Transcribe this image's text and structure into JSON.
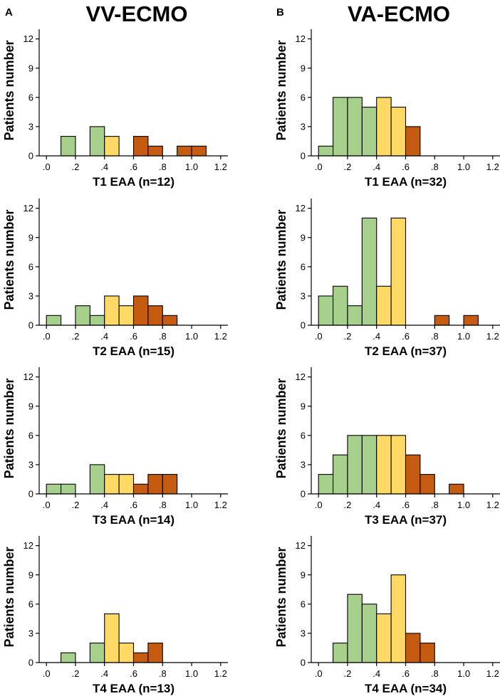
{
  "figure": {
    "columns": [
      {
        "letter": "A",
        "title": "VV-ECMO"
      },
      {
        "letter": "B",
        "title": "VA-ECMO"
      }
    ],
    "colors": {
      "green": "#a8d08d",
      "yellow": "#ffd966",
      "orange": "#c55a11",
      "axis": "#000000"
    },
    "ylabel": "Patients number",
    "xtick_labels": [
      ".0",
      ".2",
      ".4",
      ".6",
      ".8",
      "1.0",
      "1.2"
    ],
    "ytick_labels": [
      "0",
      "3",
      "6",
      "9",
      "12"
    ]
  },
  "chart_data": [
    {
      "type": "bar",
      "column": "VV-ECMO",
      "title": "VV-ECMO",
      "xlabel": "T1 EAA (n=12)",
      "ylabel": "Patients number",
      "xlim": [
        -0.05,
        1.25
      ],
      "ylim": [
        0,
        13
      ],
      "yticks": [
        0,
        3,
        6,
        9,
        12
      ],
      "bin_width": 0.1,
      "bars": [
        {
          "x0": 0.1,
          "value": 2,
          "color": "green"
        },
        {
          "x0": 0.3,
          "value": 3,
          "color": "green"
        },
        {
          "x0": 0.4,
          "value": 2,
          "color": "yellow"
        },
        {
          "x0": 0.6,
          "value": 2,
          "color": "orange"
        },
        {
          "x0": 0.7,
          "value": 1,
          "color": "orange"
        },
        {
          "x0": 0.9,
          "value": 1,
          "color": "orange"
        },
        {
          "x0": 1.0,
          "value": 1,
          "color": "orange"
        }
      ]
    },
    {
      "type": "bar",
      "column": "VV-ECMO",
      "xlabel": "T2 EAA (n=15)",
      "ylabel": "Patients number",
      "xlim": [
        -0.05,
        1.25
      ],
      "ylim": [
        0,
        13
      ],
      "yticks": [
        0,
        3,
        6,
        9,
        12
      ],
      "bin_width": 0.1,
      "bars": [
        {
          "x0": 0.0,
          "value": 1,
          "color": "green"
        },
        {
          "x0": 0.2,
          "value": 2,
          "color": "green"
        },
        {
          "x0": 0.3,
          "value": 1,
          "color": "green"
        },
        {
          "x0": 0.4,
          "value": 3,
          "color": "yellow"
        },
        {
          "x0": 0.5,
          "value": 2,
          "color": "yellow"
        },
        {
          "x0": 0.6,
          "value": 3,
          "color": "orange"
        },
        {
          "x0": 0.7,
          "value": 2,
          "color": "orange"
        },
        {
          "x0": 0.8,
          "value": 1,
          "color": "orange"
        }
      ]
    },
    {
      "type": "bar",
      "column": "VV-ECMO",
      "xlabel": "T3 EAA (n=14)",
      "ylabel": "Patients number",
      "xlim": [
        -0.05,
        1.25
      ],
      "ylim": [
        0,
        13
      ],
      "yticks": [
        0,
        3,
        6,
        9,
        12
      ],
      "bin_width": 0.1,
      "bars": [
        {
          "x0": 0.0,
          "value": 1,
          "color": "green"
        },
        {
          "x0": 0.1,
          "value": 1,
          "color": "green"
        },
        {
          "x0": 0.3,
          "value": 3,
          "color": "green"
        },
        {
          "x0": 0.4,
          "value": 2,
          "color": "yellow"
        },
        {
          "x0": 0.5,
          "value": 2,
          "color": "yellow"
        },
        {
          "x0": 0.6,
          "value": 1,
          "color": "orange"
        },
        {
          "x0": 0.7,
          "value": 2,
          "color": "orange"
        },
        {
          "x0": 0.8,
          "value": 2,
          "color": "orange"
        }
      ]
    },
    {
      "type": "bar",
      "column": "VV-ECMO",
      "xlabel": "T4 EAA (n=13)",
      "ylabel": "Patients number",
      "xlim": [
        -0.05,
        1.25
      ],
      "ylim": [
        0,
        13
      ],
      "yticks": [
        0,
        3,
        6,
        9,
        12
      ],
      "bin_width": 0.1,
      "bars": [
        {
          "x0": 0.1,
          "value": 1,
          "color": "green"
        },
        {
          "x0": 0.3,
          "value": 2,
          "color": "green"
        },
        {
          "x0": 0.4,
          "value": 5,
          "color": "yellow"
        },
        {
          "x0": 0.5,
          "value": 2,
          "color": "yellow"
        },
        {
          "x0": 0.6,
          "value": 1,
          "color": "orange"
        },
        {
          "x0": 0.7,
          "value": 2,
          "color": "orange"
        }
      ]
    },
    {
      "type": "bar",
      "column": "VA-ECMO",
      "title": "VA-ECMO",
      "xlabel": "T1 EAA (n=32)",
      "ylabel": "Patients number",
      "xlim": [
        -0.05,
        1.25
      ],
      "ylim": [
        0,
        13
      ],
      "yticks": [
        0,
        3,
        6,
        9,
        12
      ],
      "bin_width": 0.1,
      "bars": [
        {
          "x0": 0.0,
          "value": 1,
          "color": "green"
        },
        {
          "x0": 0.1,
          "value": 6,
          "color": "green"
        },
        {
          "x0": 0.2,
          "value": 6,
          "color": "green"
        },
        {
          "x0": 0.3,
          "value": 5,
          "color": "green"
        },
        {
          "x0": 0.4,
          "value": 6,
          "color": "yellow"
        },
        {
          "x0": 0.5,
          "value": 5,
          "color": "yellow"
        },
        {
          "x0": 0.6,
          "value": 3,
          "color": "orange"
        }
      ]
    },
    {
      "type": "bar",
      "column": "VA-ECMO",
      "xlabel": "T2 EAA (n=37)",
      "ylabel": "Patients number",
      "xlim": [
        -0.05,
        1.25
      ],
      "ylim": [
        0,
        13
      ],
      "yticks": [
        0,
        3,
        6,
        9,
        12
      ],
      "bin_width": 0.1,
      "bars": [
        {
          "x0": 0.0,
          "value": 3,
          "color": "green"
        },
        {
          "x0": 0.1,
          "value": 4,
          "color": "green"
        },
        {
          "x0": 0.2,
          "value": 2,
          "color": "green"
        },
        {
          "x0": 0.3,
          "value": 11,
          "color": "green"
        },
        {
          "x0": 0.4,
          "value": 4,
          "color": "yellow"
        },
        {
          "x0": 0.5,
          "value": 11,
          "color": "yellow"
        },
        {
          "x0": 0.8,
          "value": 1,
          "color": "orange"
        },
        {
          "x0": 1.0,
          "value": 1,
          "color": "orange"
        }
      ]
    },
    {
      "type": "bar",
      "column": "VA-ECMO",
      "xlabel": "T3 EAA (n=37)",
      "ylabel": "Patients number",
      "xlim": [
        -0.05,
        1.25
      ],
      "ylim": [
        0,
        13
      ],
      "yticks": [
        0,
        3,
        6,
        9,
        12
      ],
      "bin_width": 0.1,
      "bars": [
        {
          "x0": 0.0,
          "value": 2,
          "color": "green"
        },
        {
          "x0": 0.1,
          "value": 4,
          "color": "green"
        },
        {
          "x0": 0.2,
          "value": 6,
          "color": "green"
        },
        {
          "x0": 0.3,
          "value": 6,
          "color": "green"
        },
        {
          "x0": 0.4,
          "value": 6,
          "color": "yellow"
        },
        {
          "x0": 0.5,
          "value": 6,
          "color": "yellow"
        },
        {
          "x0": 0.6,
          "value": 4,
          "color": "orange"
        },
        {
          "x0": 0.7,
          "value": 2,
          "color": "orange"
        },
        {
          "x0": 0.9,
          "value": 1,
          "color": "orange"
        }
      ]
    },
    {
      "type": "bar",
      "column": "VA-ECMO",
      "xlabel": "T4 EAA (n=34)",
      "ylabel": "Patients number",
      "xlim": [
        -0.05,
        1.25
      ],
      "ylim": [
        0,
        13
      ],
      "yticks": [
        0,
        3,
        6,
        9,
        12
      ],
      "bin_width": 0.1,
      "bars": [
        {
          "x0": 0.1,
          "value": 2,
          "color": "green"
        },
        {
          "x0": 0.2,
          "value": 7,
          "color": "green"
        },
        {
          "x0": 0.3,
          "value": 6,
          "color": "green"
        },
        {
          "x0": 0.4,
          "value": 5,
          "color": "yellow"
        },
        {
          "x0": 0.5,
          "value": 9,
          "color": "yellow"
        },
        {
          "x0": 0.6,
          "value": 3,
          "color": "orange"
        },
        {
          "x0": 0.7,
          "value": 2,
          "color": "orange"
        }
      ]
    }
  ]
}
